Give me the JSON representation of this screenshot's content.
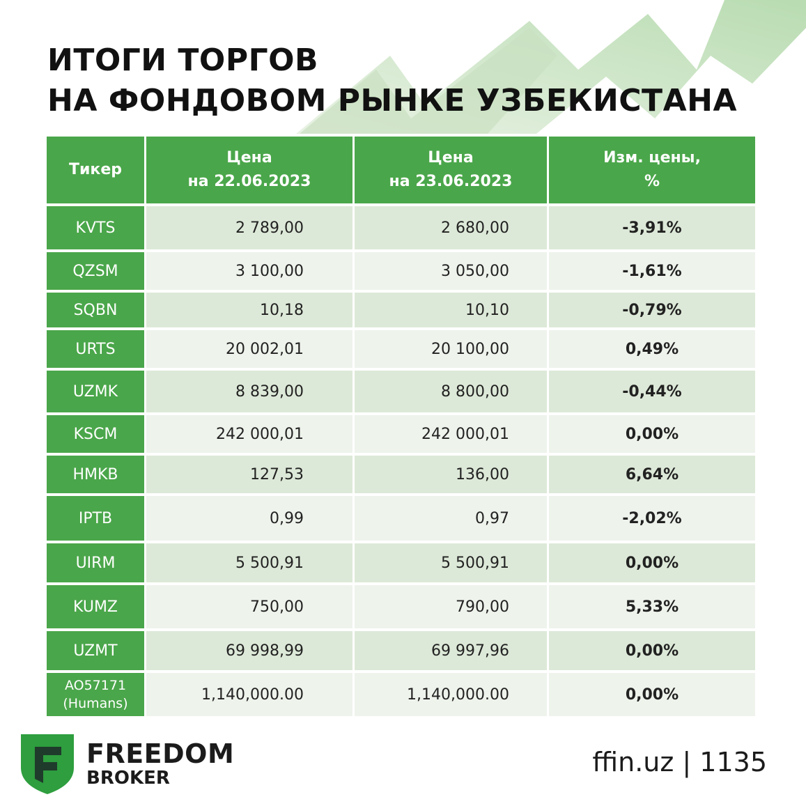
{
  "title": {
    "line1": "ИТОГИ ТОРГОВ",
    "line2": "НА ФОНДОВОМ РЫНКЕ УЗБЕКИСТАНА"
  },
  "table": {
    "headers": {
      "ticker": "Тикер",
      "price1_l1": "Цена",
      "price1_l2": "на 22.06.2023",
      "price2_l1": "Цена",
      "price2_l2": "на 23.06.2023",
      "change_l1": "Изм. цены,",
      "change_l2": "%"
    },
    "rows": [
      {
        "ticker": "KVTS",
        "p1": "2 789,00",
        "p2": "2 680,00",
        "change": "-3,91%",
        "tone": "neg"
      },
      {
        "ticker": "QZSM",
        "p1": "3 100,00",
        "p2": "3 050,00",
        "change": "-1,61%",
        "tone": "neg"
      },
      {
        "ticker": "SQBN",
        "p1": "10,18",
        "p2": "10,10",
        "change": "-0,79%",
        "tone": "neu"
      },
      {
        "ticker": "URTS",
        "p1": "20 002,01",
        "p2": "20 100,00",
        "change": "0,49%",
        "tone": "neu"
      },
      {
        "ticker": "UZMK",
        "p1": "8 839,00",
        "p2": "8 800,00",
        "change": "-0,44%",
        "tone": "neu"
      },
      {
        "ticker": "KSCM",
        "p1": "242 000,01",
        "p2": "242 000,01",
        "change": "0,00%",
        "tone": "neu"
      },
      {
        "ticker": "HMKB",
        "p1": "127,53",
        "p2": "136,00",
        "change": "6,64%",
        "tone": "pos"
      },
      {
        "ticker": "IPTB",
        "p1": "0,99",
        "p2": "0,97",
        "change": "-2,02%",
        "tone": "neg"
      },
      {
        "ticker": "UIRM",
        "p1": "5 500,91",
        "p2": "5 500,91",
        "change": "0,00%",
        "tone": "neu"
      },
      {
        "ticker": "KUMZ",
        "p1": "750,00",
        "p2": "790,00",
        "change": "5,33%",
        "tone": "pos"
      },
      {
        "ticker": "UZMT",
        "p1": "69 998,99",
        "p2": "69 997,96",
        "change": "0,00%",
        "tone": "neu"
      },
      {
        "ticker": "AO57171",
        "ticker_sub": "(Humans)",
        "p1": "1,140,000.00",
        "p2": "1,140,000.00",
        "change": "0,00%",
        "tone": "neu"
      }
    ]
  },
  "footer": {
    "brand_line1": "FREEDOM",
    "brand_line2": "BROKER",
    "site": "ffin.uz | 1135",
    "logo_icon": "freedom-shield-icon"
  },
  "colors": {
    "header_green": "#4aa64a",
    "row_dark": "#dde9d8",
    "row_light": "#eef3ec",
    "negative": "#e0161b",
    "positive": "#16a34a",
    "neutral": "#8c8c8c"
  }
}
